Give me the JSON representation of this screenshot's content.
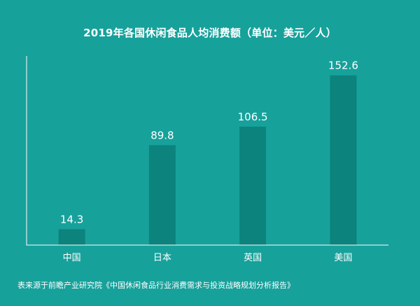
{
  "chart_data": {
    "type": "bar",
    "title": "2019年各国休闲食品人均消费额（单位：美元／人）",
    "xlabel": "",
    "ylabel": "",
    "categories": [
      "中国",
      "日本",
      "英国",
      "美国"
    ],
    "values": [
      14.3,
      89.8,
      106.5,
      152.6
    ],
    "ylim": [
      0,
      170
    ],
    "grid": false,
    "legend": "none",
    "colors": {
      "background": "#17a19b",
      "bar": "#0d837d",
      "text": "#ffffff",
      "axis": "#ffffff"
    }
  },
  "source_note": "表来源于前瞻产业研究院《中国休闲食品行业消费需求与投资战略规划分析报告》"
}
